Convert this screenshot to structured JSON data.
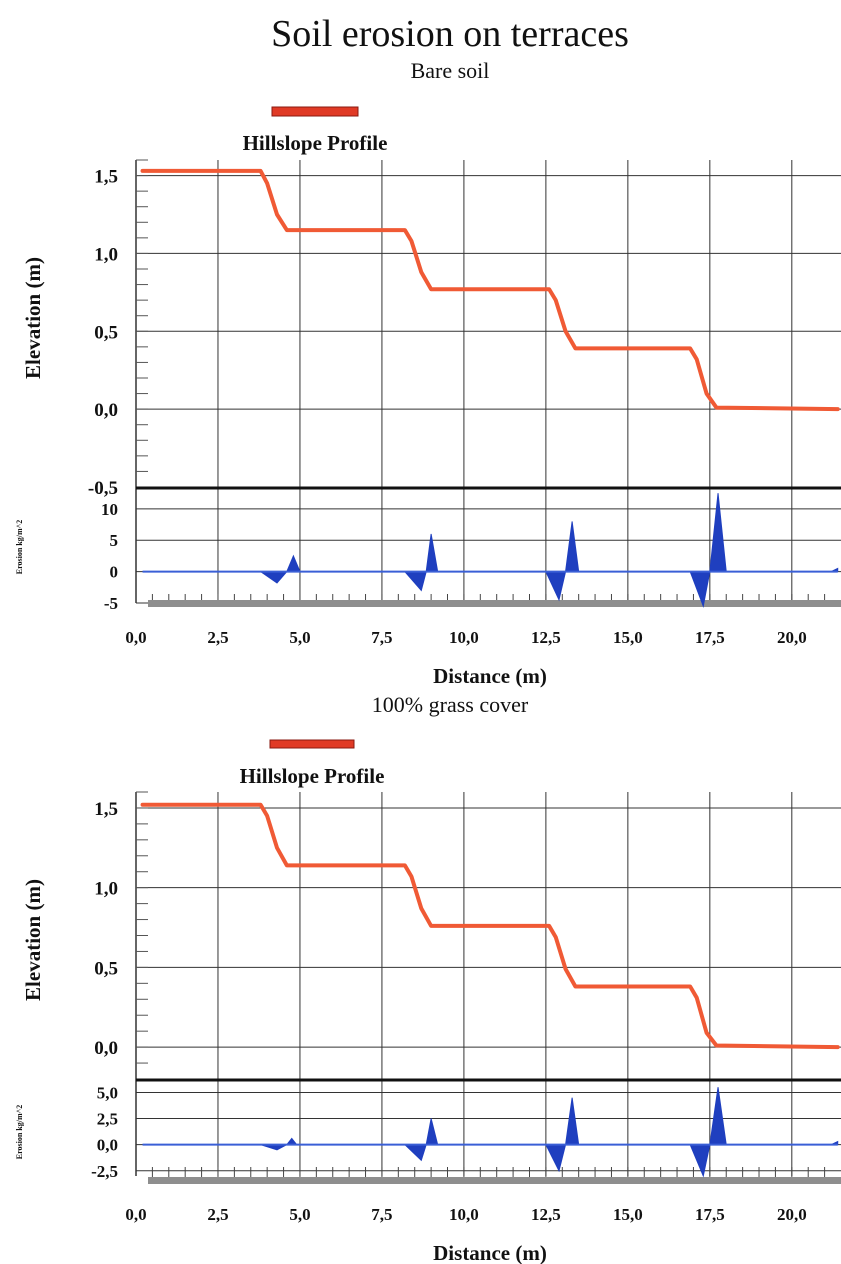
{
  "title": "Soil erosion on terraces",
  "charts": [
    {
      "subtitle": "Bare soil",
      "profile_title": "Hillslope Profile",
      "ylabel": "Elevation (m)",
      "erosion_label": "Erosion kg/m^2",
      "xlabel": "Distance (m)",
      "x_ticks": [
        "0,0",
        "2,5",
        "5,0",
        "7,5",
        "10,0",
        "12,5",
        "15,0",
        "17,5",
        "20,0"
      ],
      "y_ticks": [
        "1,5",
        "1,0",
        "0,5",
        "0,0",
        "-0,5"
      ],
      "erosion_ticks": [
        "10",
        "5",
        "0",
        "-5"
      ]
    },
    {
      "subtitle": "100% grass cover",
      "profile_title": "Hillslope Profile",
      "ylabel": "Elevation (m)",
      "erosion_label": "Erosion kg/m^2",
      "xlabel": "Distance (m)",
      "x_ticks": [
        "0,0",
        "2,5",
        "5,0",
        "7,5",
        "10,0",
        "12,5",
        "15,0",
        "17,5",
        "20,0"
      ],
      "y_ticks": [
        "1,5",
        "1,0",
        "0,5",
        "0,0"
      ],
      "erosion_ticks": [
        "5,0",
        "2,5",
        "0,0",
        "-2,5"
      ]
    }
  ],
  "chart_data": [
    {
      "type": "line",
      "title": "Hillslope Profile",
      "xlabel": "Distance (m)",
      "ylabel": "Elevation (m)",
      "xlim": [
        0,
        21.5
      ],
      "ylim": [
        -0.5,
        1.6
      ],
      "series": [
        {
          "color": "#f05a35",
          "x": [
            0.2,
            3.8,
            4.0,
            4.3,
            4.6,
            8.2,
            8.4,
            8.7,
            9.0,
            12.6,
            12.8,
            13.1,
            13.4,
            16.9,
            17.1,
            17.4,
            17.7,
            21.4
          ],
          "y": [
            1.53,
            1.53,
            1.45,
            1.25,
            1.15,
            1.15,
            1.08,
            0.88,
            0.77,
            0.77,
            0.7,
            0.5,
            0.39,
            0.39,
            0.32,
            0.1,
            0.01,
            0.0
          ]
        }
      ],
      "erosion": {
        "ylabel": "Erosion kg/m^2",
        "ylim": [
          -5,
          13
        ],
        "color": "#1f3fbf",
        "x": [
          0.2,
          3.8,
          4.3,
          4.6,
          4.8,
          5.0,
          8.2,
          8.7,
          8.85,
          9.0,
          9.2,
          12.5,
          12.9,
          13.1,
          13.3,
          13.5,
          16.9,
          17.3,
          17.5,
          17.75,
          18.0,
          21.2,
          21.4
        ],
        "y": [
          0,
          0,
          -1.8,
          0,
          2.5,
          0,
          0,
          -3.0,
          0,
          6.0,
          0,
          0,
          -4.5,
          0,
          8.0,
          0,
          0,
          -5.5,
          0,
          12.5,
          0,
          0,
          0.5
        ]
      }
    },
    {
      "type": "line",
      "title": "Hillslope Profile",
      "xlabel": "Distance (m)",
      "ylabel": "Elevation (m)",
      "xlim": [
        0,
        21.5
      ],
      "ylim": [
        -0.2,
        1.6
      ],
      "series": [
        {
          "color": "#f05a35",
          "x": [
            0.2,
            3.8,
            4.0,
            4.3,
            4.6,
            8.2,
            8.4,
            8.7,
            9.0,
            12.6,
            12.8,
            13.1,
            13.4,
            16.9,
            17.1,
            17.4,
            17.7,
            21.4
          ],
          "y": [
            1.52,
            1.52,
            1.45,
            1.25,
            1.14,
            1.14,
            1.07,
            0.87,
            0.76,
            0.76,
            0.69,
            0.49,
            0.38,
            0.38,
            0.31,
            0.09,
            0.01,
            0.0
          ]
        }
      ],
      "erosion": {
        "ylabel": "Erosion kg/m^2",
        "ylim": [
          -3.0,
          6.0
        ],
        "color": "#1f3fbf",
        "x": [
          0.2,
          3.8,
          4.3,
          4.6,
          4.75,
          4.9,
          8.2,
          8.7,
          8.85,
          9.0,
          9.2,
          12.5,
          12.9,
          13.1,
          13.3,
          13.5,
          16.9,
          17.3,
          17.5,
          17.75,
          18.0,
          21.2,
          21.4
        ],
        "y": [
          0,
          0,
          -0.5,
          0,
          0.6,
          0,
          0,
          -1.5,
          0,
          2.5,
          0,
          0,
          -2.5,
          0,
          4.5,
          0,
          0,
          -3.0,
          0,
          5.5,
          0,
          0,
          0.3
        ]
      }
    }
  ]
}
